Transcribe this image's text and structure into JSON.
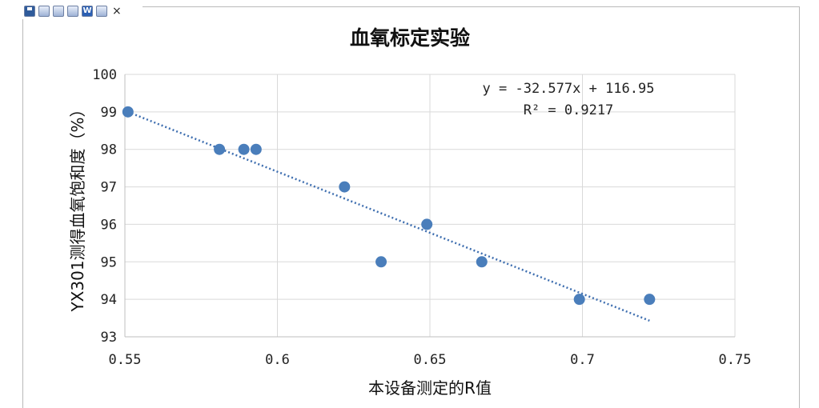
{
  "toolbar": {
    "close_glyph": "×"
  },
  "chart_data": {
    "type": "scatter",
    "title": "血氧标定实验",
    "xlabel": "本设备测定的R值",
    "ylabel": "YX301测得血氧饱和度（%）",
    "xlim": [
      0.55,
      0.75
    ],
    "ylim": [
      93,
      100
    ],
    "x_ticks": [
      "0.55",
      "0.6",
      "0.65",
      "0.7",
      "0.75"
    ],
    "y_ticks": [
      "93",
      "94",
      "95",
      "96",
      "97",
      "98",
      "99",
      "100"
    ],
    "x_tick_values": [
      0.55,
      0.6,
      0.65,
      0.7,
      0.75
    ],
    "y_tick_values": [
      93,
      94,
      95,
      96,
      97,
      98,
      99,
      100
    ],
    "grid": true,
    "marker_color": "#4a7ebb",
    "trendline_color": "#3f6fb0",
    "points": [
      {
        "x": 0.551,
        "y": 99
      },
      {
        "x": 0.581,
        "y": 98
      },
      {
        "x": 0.589,
        "y": 98
      },
      {
        "x": 0.593,
        "y": 98
      },
      {
        "x": 0.622,
        "y": 97
      },
      {
        "x": 0.634,
        "y": 95
      },
      {
        "x": 0.649,
        "y": 96
      },
      {
        "x": 0.667,
        "y": 95
      },
      {
        "x": 0.699,
        "y": 94
      },
      {
        "x": 0.722,
        "y": 94
      }
    ],
    "trendline": {
      "type": "linear",
      "slope": -32.577,
      "intercept": 116.95,
      "x_range": [
        0.551,
        0.722
      ],
      "equation": "y = -32.577x + 116.95",
      "r_squared": "R² = 0.9217"
    }
  }
}
